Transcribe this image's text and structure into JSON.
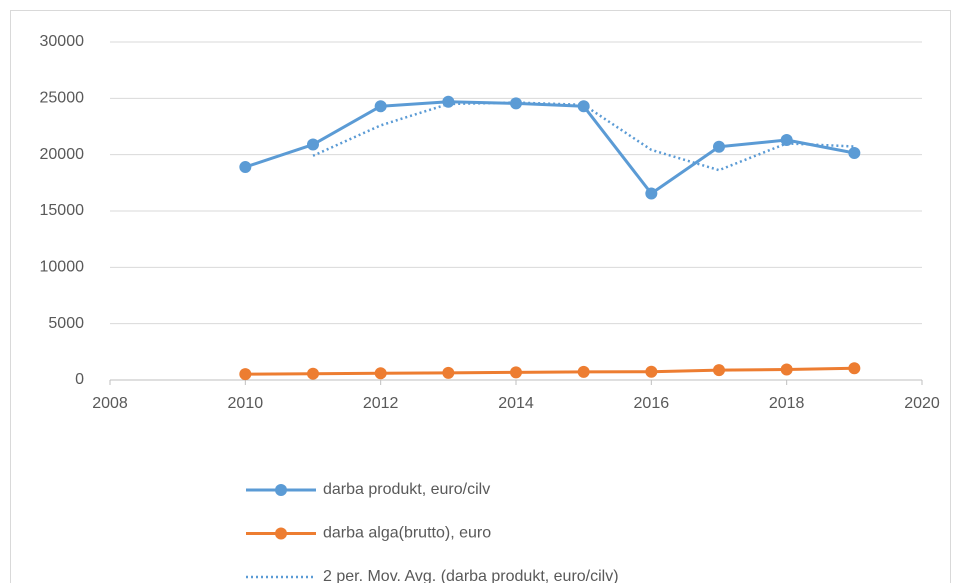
{
  "chart_data": {
    "type": "line",
    "x": [
      2010,
      2011,
      2012,
      2013,
      2014,
      2015,
      2016,
      2017,
      2018,
      2019
    ],
    "series": [
      {
        "name": "darba produkt, euro/cilv",
        "color": "#5b9bd5",
        "markers": true,
        "line_style": "solid",
        "values": [
          18900,
          20900,
          24300,
          24700,
          24550,
          24300,
          16550,
          20700,
          21300,
          20150
        ]
      },
      {
        "name": "darba alga(brutto), euro",
        "color": "#ed7d31",
        "markers": true,
        "line_style": "solid",
        "values": [
          520,
          560,
          600,
          630,
          680,
          720,
          730,
          880,
          930,
          1040
        ]
      },
      {
        "name": "2 per. Mov. Avg. (darba produkt, euro/cilv)",
        "color": "#5b9bd5",
        "markers": false,
        "line_style": "dotted",
        "values": [
          null,
          19900,
          22600,
          24500,
          24625,
          24425,
          20425,
          18625,
          21000,
          20725
        ]
      }
    ],
    "xlim": [
      2008,
      2020
    ],
    "xticks": [
      2008,
      2010,
      2012,
      2014,
      2016,
      2018,
      2020
    ],
    "ylim": [
      0,
      30000
    ],
    "yticks": [
      0,
      5000,
      10000,
      15000,
      20000,
      25000,
      30000
    ],
    "grid": true,
    "legend": "bottom"
  }
}
